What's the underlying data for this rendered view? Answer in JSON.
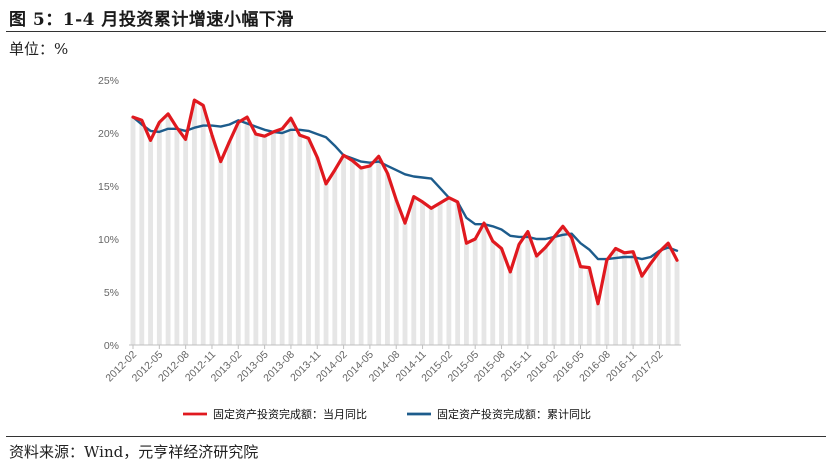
{
  "header": {
    "title": "图 5：1-4 月投资累计增速小幅下滑",
    "unit": "单位：%"
  },
  "footer": {
    "source": "资料来源：Wind，元亨祥经济研究院"
  },
  "chart_data": {
    "type": "line",
    "title": "",
    "xlabel": "",
    "ylabel": "",
    "ylim": [
      0,
      25
    ],
    "yticks": [
      "0%",
      "5%",
      "10%",
      "15%",
      "20%",
      "25%"
    ],
    "grid": false,
    "legend": "bottom",
    "x": [
      "2012-02",
      "2012-03",
      "2012-04",
      "2012-05",
      "2012-06",
      "2012-07",
      "2012-08",
      "2012-09",
      "2012-10",
      "2012-11",
      "2012-12",
      "2013-01",
      "2013-02",
      "2013-03",
      "2013-04",
      "2013-05",
      "2013-06",
      "2013-07",
      "2013-08",
      "2013-09",
      "2013-10",
      "2013-11",
      "2013-12",
      "2014-01",
      "2014-02",
      "2014-03",
      "2014-04",
      "2014-05",
      "2014-06",
      "2014-07",
      "2014-08",
      "2014-09",
      "2014-10",
      "2014-11",
      "2014-12",
      "2015-01",
      "2015-02",
      "2015-03",
      "2015-04",
      "2015-05",
      "2015-06",
      "2015-07",
      "2015-08",
      "2015-09",
      "2015-10",
      "2015-11",
      "2015-12",
      "2016-01",
      "2016-02",
      "2016-03",
      "2016-04",
      "2016-05",
      "2016-06",
      "2016-07",
      "2016-08",
      "2016-09",
      "2016-10",
      "2016-11",
      "2016-12",
      "2017-01",
      "2017-02",
      "2017-03",
      "2017-04"
    ],
    "xtick_labels": [
      "2012-02",
      "2012-05",
      "2012-08",
      "2012-11",
      "2013-02",
      "2013-05",
      "2013-08",
      "2013-11",
      "2014-02",
      "2014-05",
      "2014-08",
      "2014-11",
      "2015-02",
      "2015-05",
      "2015-08",
      "2015-11",
      "2016-02",
      "2016-05",
      "2016-08",
      "2016-11",
      "2017-02"
    ],
    "series": [
      {
        "name": "固定资产投资完成额：当月同比",
        "color": "#e0191f",
        "values": [
          21.5,
          21.2,
          19.3,
          21.0,
          21.8,
          20.5,
          19.4,
          23.1,
          22.6,
          19.8,
          17.3,
          19.2,
          21.0,
          21.5,
          19.9,
          19.7,
          20.1,
          20.4,
          21.4,
          19.8,
          19.5,
          17.7,
          15.2,
          16.5,
          17.9,
          17.4,
          16.7,
          16.9,
          17.8,
          16.2,
          13.7,
          11.5,
          14.0,
          13.5,
          12.9,
          13.4,
          13.9,
          13.5,
          9.6,
          10.0,
          11.5,
          9.8,
          9.1,
          6.9,
          9.5,
          10.7,
          8.4,
          9.2,
          10.2,
          11.2,
          10.1,
          7.4,
          7.3,
          3.9,
          8.0,
          9.1,
          8.7,
          8.8,
          6.5,
          7.7,
          8.8,
          9.6,
          8.0
        ]
      },
      {
        "name": "固定资产投资完成额：累计同比",
        "color": "#1d5c8c",
        "values": [
          21.5,
          20.8,
          20.2,
          20.1,
          20.4,
          20.4,
          20.2,
          20.5,
          20.7,
          20.7,
          20.6,
          20.8,
          21.2,
          20.9,
          20.6,
          20.3,
          20.1,
          20.0,
          20.3,
          20.3,
          20.2,
          19.9,
          19.6,
          18.8,
          17.9,
          17.6,
          17.3,
          17.2,
          17.3,
          16.9,
          16.5,
          16.1,
          15.9,
          15.8,
          15.7,
          14.8,
          13.9,
          13.5,
          12.0,
          11.4,
          11.4,
          11.2,
          10.9,
          10.3,
          10.2,
          10.2,
          10.0,
          10.0,
          10.2,
          10.4,
          10.5,
          9.6,
          9.0,
          8.1,
          8.1,
          8.2,
          8.3,
          8.3,
          8.1,
          8.3,
          8.9,
          9.2,
          8.9
        ]
      }
    ]
  }
}
